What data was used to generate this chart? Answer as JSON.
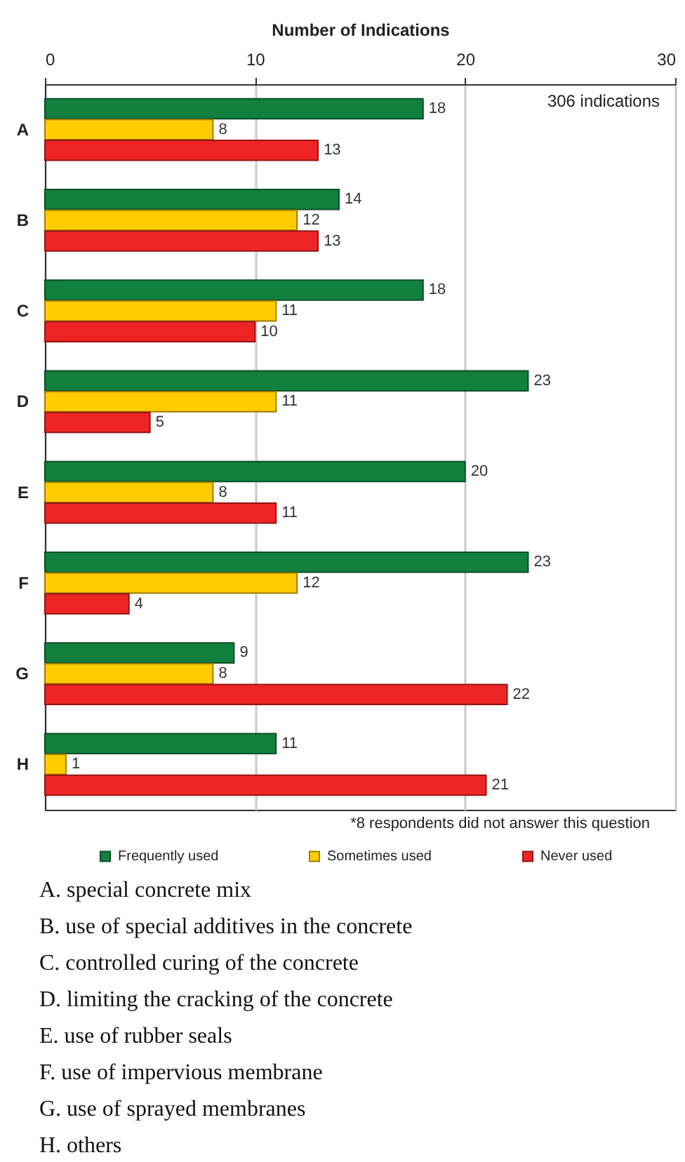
{
  "chart_data": {
    "type": "bar",
    "orientation": "horizontal",
    "xlabel": "Number of Indications",
    "categories": [
      "A",
      "B",
      "C",
      "D",
      "E",
      "F",
      "G",
      "H"
    ],
    "series": [
      {
        "name": "Frequently used",
        "color": "#12803f",
        "values": [
          18,
          14,
          18,
          23,
          20,
          23,
          9,
          11
        ]
      },
      {
        "name": "Sometimes used",
        "color": "#ffcc00",
        "values": [
          8,
          12,
          11,
          11,
          8,
          12,
          8,
          1
        ]
      },
      {
        "name": "Never used",
        "color": "#ee2424",
        "values": [
          13,
          13,
          10,
          5,
          11,
          4,
          22,
          21
        ]
      }
    ],
    "xlim": [
      0,
      30
    ],
    "xticks": [
      0,
      10,
      20,
      30
    ],
    "grid": "x",
    "legend": "bottom",
    "data_labels": true,
    "annotations": [
      "306 indications",
      "*8 respondents did not answer this question",
      "A. special concrete mix",
      "B. use of special additives in the concrete",
      "C. controlled curing of the concrete",
      "D. limiting the cracking of the concrete",
      "E. use of rubber seals",
      "F. use of impervious membrane",
      "G. use of sprayed membranes",
      "H. others"
    ]
  }
}
